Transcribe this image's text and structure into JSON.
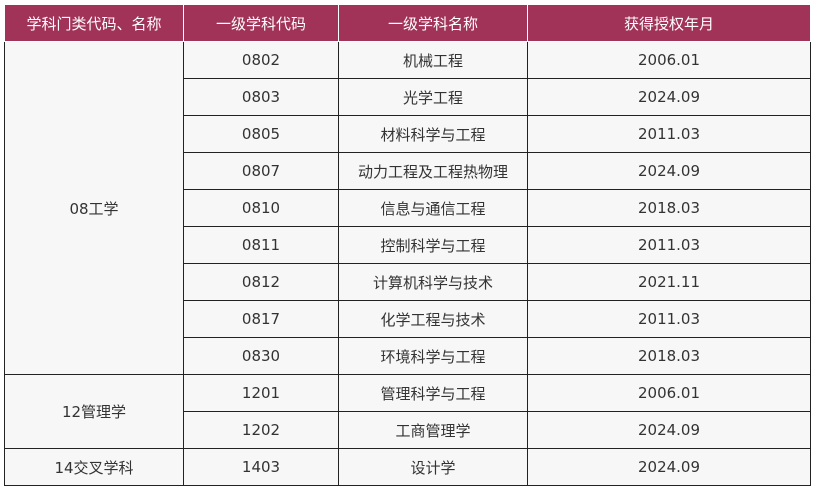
{
  "headers": [
    "学科门类代码、名称",
    "一级学科代码",
    "一级学科名称",
    "获得授权年月"
  ],
  "groups": [
    {
      "name": "08工学",
      "rows": [
        {
          "code": "0802",
          "name": "机械工程",
          "date": "2006.01"
        },
        {
          "code": "0803",
          "name": "光学工程",
          "date": "2024.09"
        },
        {
          "code": "0805",
          "name": "材料科学与工程",
          "date": "2011.03"
        },
        {
          "code": "0807",
          "name": "动力工程及工程热物理",
          "date": "2024.09"
        },
        {
          "code": "0810",
          "name": "信息与通信工程",
          "date": "2018.03"
        },
        {
          "code": "0811",
          "name": "控制科学与工程",
          "date": "2011.03"
        },
        {
          "code": "0812",
          "name": "计算机科学与技术",
          "date": "2021.11"
        },
        {
          "code": "0817",
          "name": "化学工程与技术",
          "date": "2011.03"
        },
        {
          "code": "0830",
          "name": "环境科学与工程",
          "date": "2018.03"
        }
      ]
    },
    {
      "name": "12管理学",
      "rows": [
        {
          "code": "1201",
          "name": "管理科学与工程",
          "date": "2006.01"
        },
        {
          "code": "1202",
          "name": "工商管理学",
          "date": "2024.09"
        }
      ]
    },
    {
      "name": "14交叉学科",
      "rows": [
        {
          "code": "1403",
          "name": "设计学",
          "date": "2024.09"
        }
      ]
    }
  ]
}
